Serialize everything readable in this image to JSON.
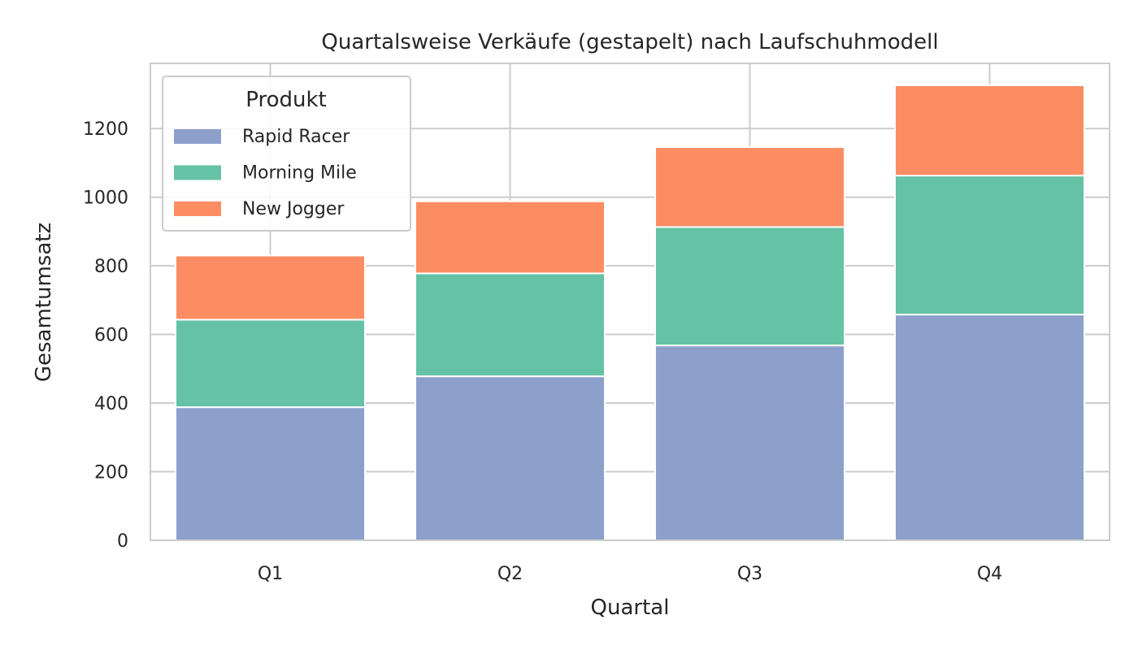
{
  "chart_data": {
    "type": "bar",
    "stacked": true,
    "title": "Quartalsweise Verkäufe (gestapelt) nach Laufschuhmodell",
    "xlabel": "Quartal",
    "ylabel": "Gesamtumsatz",
    "categories": [
      "Q1",
      "Q2",
      "Q3",
      "Q4"
    ],
    "ylim": [
      0,
      1390
    ],
    "yticks": [
      0,
      200,
      400,
      600,
      800,
      1000,
      1200
    ],
    "grid": true,
    "legend": {
      "title": "Produkt",
      "position": "top-left"
    },
    "series": [
      {
        "name": "Rapid Racer",
        "color": "#8da0cb",
        "values": [
          388,
          478,
          568,
          658
        ]
      },
      {
        "name": "Morning Mile",
        "color": "#66c2a5",
        "values": [
          255,
          300,
          345,
          405
        ]
      },
      {
        "name": "New Jogger",
        "color": "#fc8d62",
        "values": [
          187,
          210,
          233,
          263
        ]
      }
    ]
  }
}
